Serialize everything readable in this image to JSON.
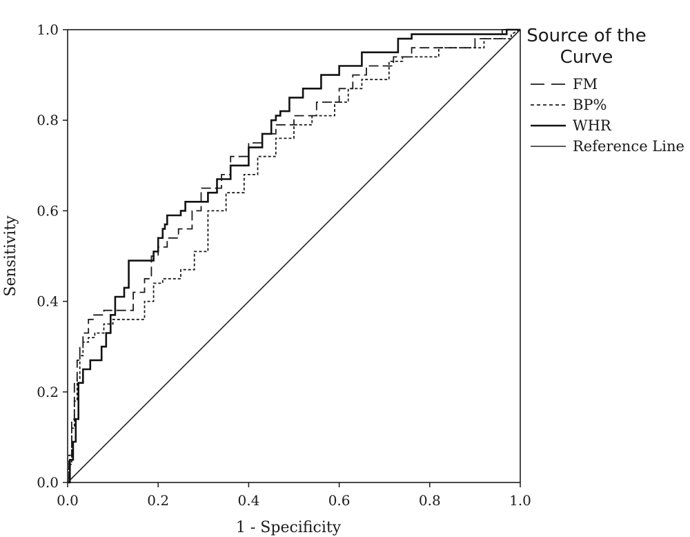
{
  "chart_data": {
    "type": "line",
    "title": "",
    "xlabel": "1 - Specificity",
    "ylabel": "Sensitivity",
    "xlim": [
      0,
      1
    ],
    "ylim": [
      0,
      1
    ],
    "xticks": [
      "0.0",
      "0.2",
      "0.4",
      "0.6",
      "0.8",
      "1.0"
    ],
    "yticks": [
      "0.0",
      "0.2",
      "0.4",
      "0.6",
      "0.8",
      "1.0"
    ],
    "grid": false,
    "legend": {
      "title": "Source of the Curve",
      "placement": "right"
    },
    "series": [
      {
        "name": "FM",
        "style": "dashed",
        "color": "#1a1a1a",
        "x": [
          0,
          0.003,
          0.003,
          0.009,
          0.009,
          0.015,
          0.015,
          0.021,
          0.021,
          0.027,
          0.027,
          0.034,
          0.034,
          0.046,
          0.046,
          0.058,
          0.058,
          0.08,
          0.08,
          0.11,
          0.11,
          0.145,
          0.145,
          0.17,
          0.17,
          0.185,
          0.185,
          0.2,
          0.2,
          0.22,
          0.22,
          0.245,
          0.245,
          0.275,
          0.275,
          0.295,
          0.295,
          0.34,
          0.34,
          0.36,
          0.36,
          0.4,
          0.4,
          0.43,
          0.43,
          0.46,
          0.46,
          0.5,
          0.5,
          0.55,
          0.55,
          0.6,
          0.6,
          0.63,
          0.63,
          0.66,
          0.66,
          0.72,
          0.72,
          0.76,
          0.76,
          0.9,
          0.9,
          0.96,
          0.96,
          1.0
        ],
        "y": [
          0,
          0,
          0.06,
          0.06,
          0.14,
          0.14,
          0.22,
          0.22,
          0.27,
          0.27,
          0.3,
          0.3,
          0.33,
          0.33,
          0.36,
          0.36,
          0.37,
          0.37,
          0.38,
          0.38,
          0.38,
          0.38,
          0.42,
          0.42,
          0.45,
          0.45,
          0.5,
          0.5,
          0.52,
          0.52,
          0.54,
          0.54,
          0.56,
          0.56,
          0.6,
          0.6,
          0.65,
          0.65,
          0.68,
          0.68,
          0.72,
          0.72,
          0.75,
          0.75,
          0.77,
          0.77,
          0.79,
          0.79,
          0.81,
          0.81,
          0.84,
          0.84,
          0.87,
          0.87,
          0.9,
          0.9,
          0.92,
          0.92,
          0.94,
          0.94,
          0.96,
          0.96,
          0.98,
          0.98,
          1.0,
          1.0
        ]
      },
      {
        "name": "BP%",
        "style": "dotted",
        "color": "#1a1a1a",
        "x": [
          0,
          0.003,
          0.003,
          0.009,
          0.009,
          0.015,
          0.015,
          0.021,
          0.021,
          0.027,
          0.027,
          0.034,
          0.034,
          0.046,
          0.046,
          0.06,
          0.06,
          0.08,
          0.08,
          0.1,
          0.1,
          0.13,
          0.13,
          0.17,
          0.17,
          0.19,
          0.19,
          0.21,
          0.21,
          0.25,
          0.25,
          0.28,
          0.28,
          0.31,
          0.31,
          0.35,
          0.35,
          0.39,
          0.39,
          0.42,
          0.42,
          0.46,
          0.46,
          0.5,
          0.5,
          0.54,
          0.54,
          0.59,
          0.59,
          0.62,
          0.62,
          0.65,
          0.65,
          0.71,
          0.71,
          0.74,
          0.74,
          0.82,
          0.82,
          0.92,
          0.92,
          0.98,
          0.98,
          1.0
        ],
        "y": [
          0,
          0,
          0.04,
          0.04,
          0.12,
          0.12,
          0.18,
          0.18,
          0.23,
          0.23,
          0.28,
          0.28,
          0.31,
          0.31,
          0.32,
          0.32,
          0.33,
          0.33,
          0.35,
          0.35,
          0.36,
          0.36,
          0.36,
          0.36,
          0.4,
          0.4,
          0.44,
          0.44,
          0.45,
          0.45,
          0.47,
          0.47,
          0.51,
          0.51,
          0.6,
          0.6,
          0.64,
          0.64,
          0.68,
          0.68,
          0.72,
          0.72,
          0.76,
          0.76,
          0.79,
          0.79,
          0.81,
          0.81,
          0.84,
          0.84,
          0.87,
          0.87,
          0.89,
          0.89,
          0.93,
          0.93,
          0.94,
          0.94,
          0.96,
          0.96,
          0.98,
          0.98,
          0.99,
          1.0
        ]
      },
      {
        "name": "WHR",
        "style": "solid-thick",
        "color": "#111111",
        "x": [
          0,
          0.005,
          0.005,
          0.012,
          0.012,
          0.018,
          0.018,
          0.024,
          0.024,
          0.034,
          0.034,
          0.05,
          0.05,
          0.075,
          0.075,
          0.085,
          0.085,
          0.095,
          0.095,
          0.105,
          0.105,
          0.125,
          0.125,
          0.135,
          0.135,
          0.19,
          0.19,
          0.2,
          0.2,
          0.21,
          0.21,
          0.215,
          0.215,
          0.22,
          0.22,
          0.23,
          0.23,
          0.25,
          0.25,
          0.26,
          0.26,
          0.29,
          0.29,
          0.31,
          0.31,
          0.33,
          0.33,
          0.36,
          0.36,
          0.4,
          0.4,
          0.43,
          0.43,
          0.45,
          0.45,
          0.46,
          0.46,
          0.47,
          0.47,
          0.49,
          0.49,
          0.52,
          0.52,
          0.56,
          0.56,
          0.6,
          0.6,
          0.65,
          0.65,
          0.73,
          0.73,
          0.76,
          0.76,
          0.97,
          0.97,
          1.0
        ],
        "y": [
          0,
          0,
          0.05,
          0.05,
          0.09,
          0.09,
          0.14,
          0.14,
          0.22,
          0.22,
          0.25,
          0.25,
          0.27,
          0.27,
          0.3,
          0.3,
          0.33,
          0.33,
          0.37,
          0.37,
          0.41,
          0.41,
          0.43,
          0.43,
          0.49,
          0.49,
          0.51,
          0.51,
          0.54,
          0.54,
          0.56,
          0.56,
          0.57,
          0.57,
          0.59,
          0.59,
          0.59,
          0.59,
          0.6,
          0.6,
          0.62,
          0.62,
          0.62,
          0.62,
          0.64,
          0.64,
          0.67,
          0.67,
          0.7,
          0.7,
          0.74,
          0.74,
          0.77,
          0.77,
          0.8,
          0.8,
          0.81,
          0.81,
          0.82,
          0.82,
          0.85,
          0.85,
          0.87,
          0.87,
          0.9,
          0.9,
          0.92,
          0.92,
          0.95,
          0.95,
          0.98,
          0.98,
          0.99,
          0.99,
          1.0,
          1.0
        ]
      },
      {
        "name": "Reference Line",
        "style": "solid-thin",
        "color": "#222222",
        "x": [
          0,
          1
        ],
        "y": [
          0,
          1
        ]
      }
    ]
  }
}
